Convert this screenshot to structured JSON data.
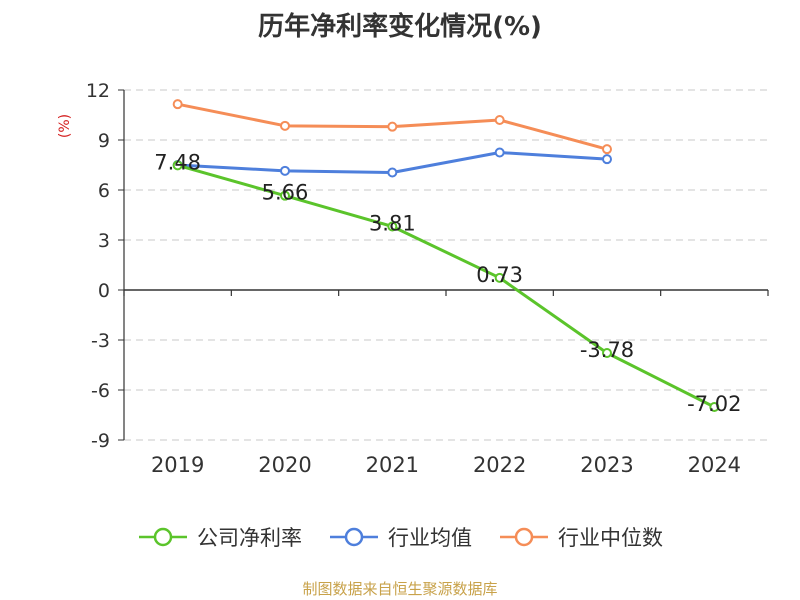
{
  "title": "历年净利率变化情况(%)",
  "source_note": "制图数据来自恒生聚源数据库",
  "chart_data": {
    "type": "line",
    "title": "历年净利率变化情况(%)",
    "ylabel": "(%)",
    "ylim": [
      -9,
      12
    ],
    "yticks": [
      12,
      9,
      6,
      3,
      0,
      -3,
      -6,
      -9
    ],
    "categories": [
      "2019",
      "2020",
      "2021",
      "2022",
      "2023",
      "2024"
    ],
    "grid": true,
    "legend_position": "bottom",
    "series": [
      {
        "name": "公司净利率",
        "color": "#5bc42b",
        "values": [
          7.48,
          5.66,
          3.81,
          0.73,
          -3.78,
          -7.02
        ],
        "labels": [
          "7.48",
          "5.66",
          "3.81",
          "0.73",
          "-3.78",
          "-7.02"
        ]
      },
      {
        "name": "行业均值",
        "color": "#4e7fdc",
        "values": [
          7.5,
          7.15,
          7.05,
          8.25,
          7.85,
          null
        ]
      },
      {
        "name": "行业中位数",
        "color": "#f58d57",
        "values": [
          11.15,
          9.85,
          9.8,
          10.2,
          8.45,
          null
        ]
      }
    ]
  }
}
